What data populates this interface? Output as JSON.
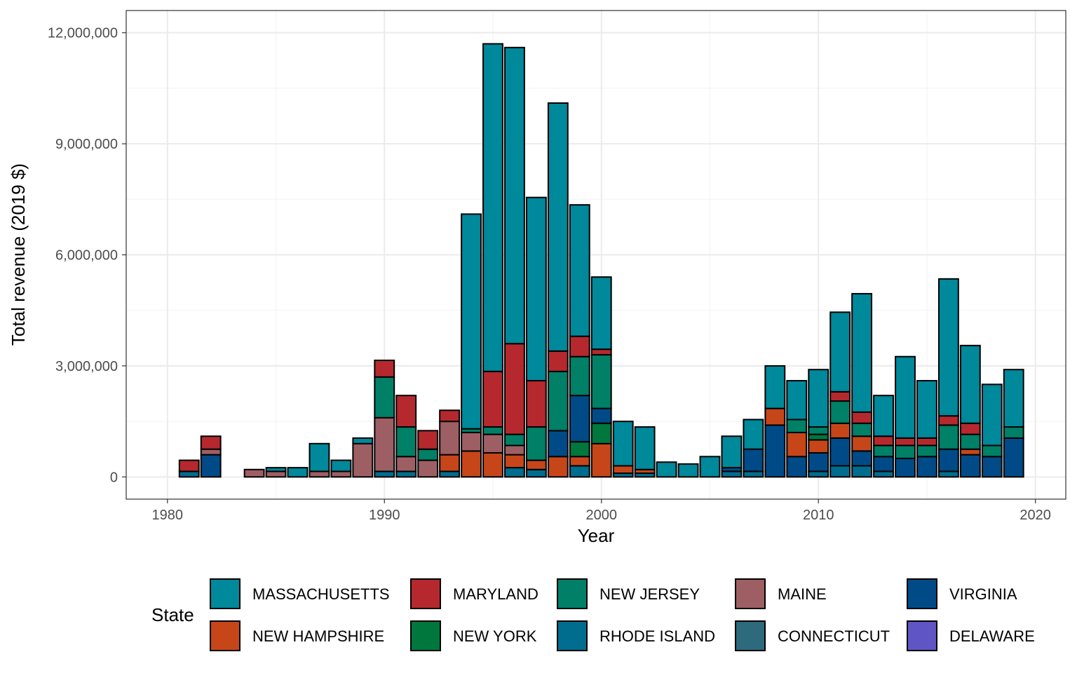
{
  "chart_data": {
    "type": "bar",
    "stacked": true,
    "title": "",
    "xlabel": "Year",
    "ylabel": "Total revenue (2019 $)",
    "xlim": [
      1978.1,
      2021.4
    ],
    "ylim": [
      -600000,
      12600000
    ],
    "x_ticks": [
      1980,
      1990,
      2000,
      2010,
      2020
    ],
    "x_tick_labels": [
      "1980",
      "1990",
      "2000",
      "2010",
      "2020"
    ],
    "y_ticks": [
      0,
      3000000,
      6000000,
      9000000,
      12000000
    ],
    "y_tick_labels": [
      "0",
      "3,000,000",
      "6,000,000",
      "9,000,000",
      "12,000,000"
    ],
    "grid": true,
    "legend_title": "State",
    "legend_position": "bottom",
    "x": [
      1981,
      1982,
      1983,
      1984,
      1985,
      1986,
      1987,
      1988,
      1989,
      1990,
      1991,
      1992,
      1993,
      1994,
      1995,
      1996,
      1997,
      1998,
      1999,
      2000,
      2001,
      2002,
      2003,
      2004,
      2005,
      2006,
      2007,
      2008,
      2009,
      2010,
      2011,
      2012,
      2013,
      2014,
      2015,
      2016,
      2017,
      2018,
      2019
    ],
    "series": [
      {
        "name": "RHODE ISLAND",
        "color": "#006d8f",
        "values": [
          150000,
          0,
          0,
          0,
          0,
          0,
          0,
          0,
          0,
          150000,
          150000,
          0,
          150000,
          0,
          0,
          250000,
          200000,
          0,
          300000,
          0,
          100000,
          100000,
          0,
          0,
          0,
          150000,
          150000,
          0,
          0,
          150000,
          300000,
          300000,
          150000,
          0,
          0,
          150000,
          0,
          0,
          0
        ]
      },
      {
        "name": "VIRGINIA",
        "color": "#004b87",
        "values": [
          0,
          600000,
          0,
          0,
          0,
          0,
          0,
          0,
          0,
          0,
          0,
          0,
          0,
          0,
          0,
          0,
          0,
          0,
          0,
          0,
          0,
          0,
          0,
          0,
          0,
          100000,
          600000,
          1400000,
          550000,
          500000,
          750000,
          400000,
          400000,
          500000,
          550000,
          600000,
          600000,
          550000,
          1050000
        ]
      },
      {
        "name": "NEW HAMPSHIRE",
        "color": "#c6461a",
        "values": [
          0,
          0,
          0,
          0,
          0,
          0,
          0,
          0,
          0,
          0,
          0,
          0,
          450000,
          700000,
          650000,
          350000,
          250000,
          550000,
          250000,
          900000,
          200000,
          100000,
          0,
          0,
          0,
          0,
          0,
          450000,
          650000,
          350000,
          400000,
          400000,
          0,
          0,
          0,
          0,
          150000,
          0,
          0
        ]
      },
      {
        "name": "NEW YORK",
        "color": "#00773d",
        "values": [
          0,
          0,
          0,
          0,
          0,
          0,
          0,
          0,
          0,
          0,
          0,
          0,
          0,
          0,
          0,
          0,
          0,
          0,
          400000,
          550000,
          0,
          0,
          0,
          0,
          0,
          0,
          0,
          0,
          0,
          150000,
          0,
          0,
          0,
          0,
          0,
          0,
          0,
          0,
          0
        ]
      },
      {
        "name": "VIRGINIA",
        "color": "#004b87",
        "values": [
          0,
          0,
          0,
          0,
          0,
          0,
          0,
          0,
          0,
          0,
          0,
          0,
          0,
          0,
          0,
          0,
          0,
          700000,
          0,
          400000,
          0,
          0,
          0,
          0,
          0,
          0,
          0,
          0,
          0,
          0,
          0,
          0,
          0,
          0,
          0,
          0,
          0,
          0,
          0
        ]
      },
      {
        "name": "VIRGINIA",
        "color": "#004b87",
        "values": [
          0,
          0,
          0,
          0,
          0,
          0,
          0,
          0,
          0,
          0,
          0,
          0,
          0,
          0,
          0,
          0,
          0,
          0,
          1250000,
          0,
          0,
          0,
          0,
          0,
          0,
          0,
          0,
          0,
          0,
          0,
          0,
          0,
          0,
          0,
          0,
          0,
          0,
          0,
          0
        ]
      },
      {
        "name": "MAINE",
        "color": "#9e5f64",
        "values": [
          0,
          150000,
          0,
          200000,
          150000,
          0,
          150000,
          150000,
          900000,
          1450000,
          400000,
          450000,
          900000,
          500000,
          500000,
          250000,
          0,
          0,
          0,
          0,
          0,
          0,
          0,
          0,
          0,
          0,
          0,
          0,
          0,
          0,
          0,
          0,
          0,
          0,
          0,
          0,
          0,
          0,
          0
        ]
      },
      {
        "name": "NEW JERSEY",
        "color": "#008066",
        "values": [
          0,
          0,
          0,
          0,
          0,
          0,
          0,
          0,
          0,
          1100000,
          800000,
          300000,
          0,
          100000,
          200000,
          300000,
          900000,
          1600000,
          1050000,
          1450000,
          0,
          0,
          0,
          0,
          0,
          0,
          0,
          0,
          350000,
          200000,
          600000,
          350000,
          300000,
          350000,
          300000,
          650000,
          400000,
          300000,
          300000
        ]
      },
      {
        "name": "MARYLAND",
        "color": "#b5292e",
        "values": [
          300000,
          350000,
          0,
          0,
          0,
          0,
          0,
          0,
          0,
          450000,
          850000,
          500000,
          300000,
          0,
          1500000,
          2450000,
          1250000,
          550000,
          550000,
          150000,
          0,
          0,
          0,
          0,
          0,
          0,
          0,
          0,
          0,
          0,
          250000,
          300000,
          250000,
          200000,
          200000,
          250000,
          300000,
          0,
          0
        ]
      },
      {
        "name": "MASSACHUSETTS",
        "color": "#00889b",
        "values": [
          0,
          0,
          0,
          0,
          100000,
          250000,
          750000,
          300000,
          150000,
          0,
          0,
          0,
          0,
          5800000,
          8850000,
          8000000,
          4950000,
          6700000,
          3550000,
          1950000,
          1200000,
          1150000,
          400000,
          350000,
          550000,
          850000,
          800000,
          1150000,
          1050000,
          1550000,
          2150000,
          3200000,
          1100000,
          2200000,
          1550000,
          3700000,
          2100000,
          1650000,
          1550000
        ]
      }
    ]
  },
  "legend": {
    "title": "State",
    "items": [
      {
        "label": "MASSACHUSETTS",
        "color": "#00889b"
      },
      {
        "label": "MARYLAND",
        "color": "#b5292e"
      },
      {
        "label": "NEW JERSEY",
        "color": "#008066"
      },
      {
        "label": "MAINE",
        "color": "#9e5f64"
      },
      {
        "label": "VIRGINIA",
        "color": "#004b87"
      },
      {
        "label": "NEW HAMPSHIRE",
        "color": "#c6461a"
      },
      {
        "label": "NEW YORK",
        "color": "#00773d"
      },
      {
        "label": "RHODE ISLAND",
        "color": "#006d8f"
      },
      {
        "label": "CONNECTICUT",
        "color": "#2e6a7d"
      },
      {
        "label": "DELAWARE",
        "color": "#6055c4"
      }
    ]
  }
}
